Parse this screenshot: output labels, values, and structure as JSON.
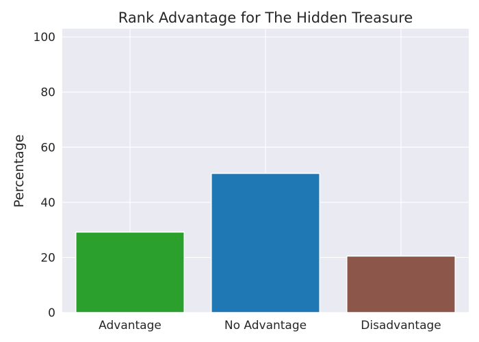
{
  "chart_data": {
    "type": "bar",
    "title": "Rank Advantage for The Hidden Treasure",
    "xlabel": "",
    "ylabel": "Percentage",
    "categories": [
      "Advantage",
      "No Advantage",
      "Disadvantage"
    ],
    "values": [
      29.2,
      50.5,
      20.5
    ],
    "colors": [
      "#2ca02c",
      "#1f77b4",
      "#8c564b"
    ],
    "ylim": [
      0,
      103
    ],
    "yticks": [
      0,
      20,
      40,
      60,
      80,
      100
    ],
    "grid": true,
    "background_color": "#eaeaf2"
  }
}
